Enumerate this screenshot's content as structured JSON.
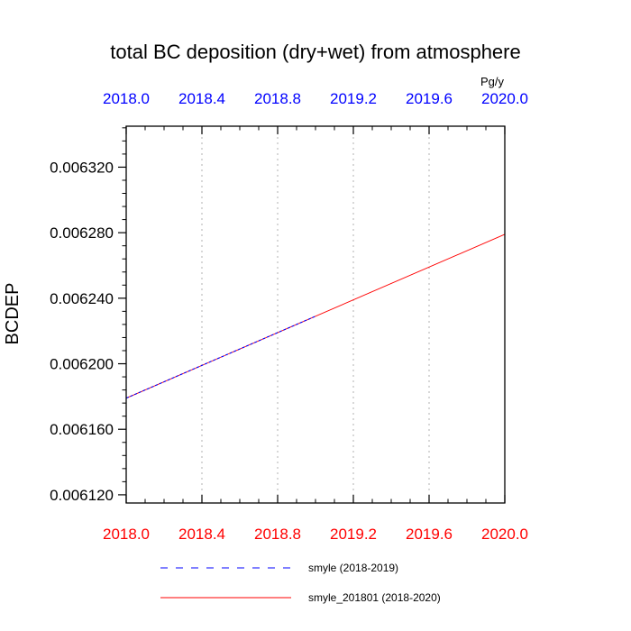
{
  "chart_data": {
    "type": "line",
    "title": "total BC deposition (dry+wet) from atmosphere",
    "units": "Pg/y",
    "ylabel": "BCDEP",
    "xlabel": "",
    "xlim": [
      2018.0,
      2020.0
    ],
    "ylim": [
      0.006115,
      0.006345
    ],
    "xticks": [
      2018.0,
      2018.4,
      2018.8,
      2019.2,
      2019.6,
      2020.0
    ],
    "xtick_labels": [
      "2018.0",
      "2018.4",
      "2018.8",
      "2019.2",
      "2019.6",
      "2020.0"
    ],
    "yticks": [
      0.00612,
      0.00616,
      0.0062,
      0.00624,
      0.00628,
      0.00632
    ],
    "ytick_labels": [
      "0.006120",
      "0.006160",
      "0.006200",
      "0.006240",
      "0.006280",
      "0.006320"
    ],
    "top_axis_color": "#0000ff",
    "bottom_axis_color": "#ff0000",
    "grid": "vertical dotted",
    "legend_position": "bottom",
    "series": [
      {
        "name": "smyle (2018-2019)",
        "color": "#0000ff",
        "dash": "dashed",
        "x": [
          2018.0,
          2019.0
        ],
        "y": [
          0.006179,
          0.006229
        ]
      },
      {
        "name": "smyle_201801 (2018-2020)",
        "color": "#ff0000",
        "dash": "solid",
        "x": [
          2018.0,
          2020.0
        ],
        "y": [
          0.006179,
          0.006279
        ]
      }
    ]
  }
}
